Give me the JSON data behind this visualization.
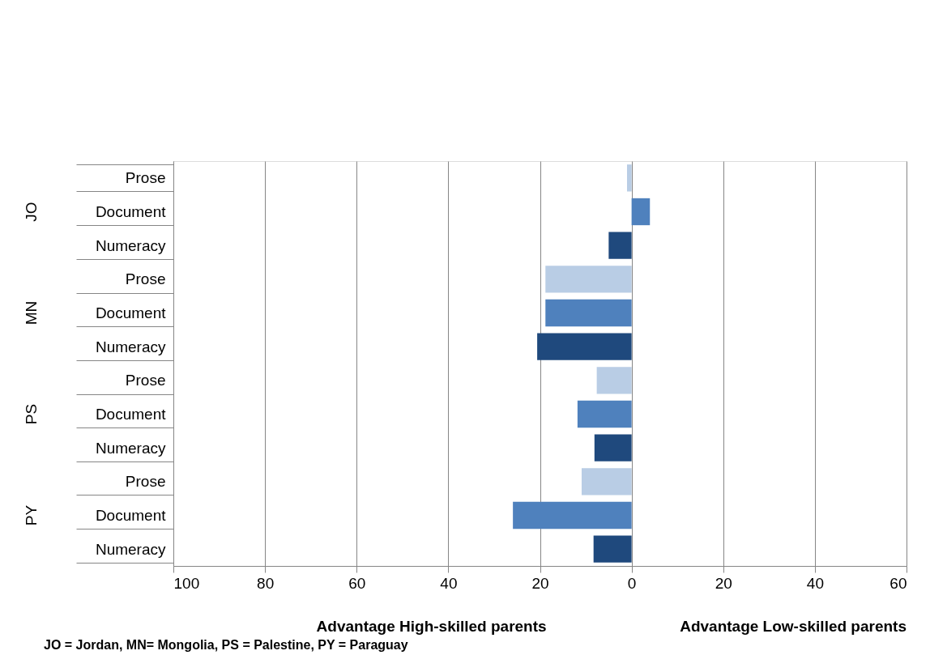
{
  "chart_data": {
    "type": "bar",
    "orientation": "horizontal",
    "categories": [
      "Prose",
      "Document",
      "Numeracy",
      "Prose",
      "Document",
      "Numeracy",
      "Prose",
      "Document",
      "Numeracy",
      "Prose",
      "Document",
      "Numeracy"
    ],
    "values": [
      -1,
      4,
      -5,
      -18.8,
      -18.8,
      -20.6,
      -7.6,
      -11.8,
      -8.1,
      -10.9,
      -25.9,
      -8.3
    ],
    "colors": [
      "#b9cde5",
      "#4f81bd",
      "#1f497d",
      "#b9cde5",
      "#4f81bd",
      "#1f497d",
      "#b9cde5",
      "#4f81bd",
      "#1f497d",
      "#b9cde5",
      "#4f81bd",
      "#1f497d"
    ],
    "xlim": [
      -100,
      60
    ],
    "xticks": [
      {
        "value": -100,
        "label": "100"
      },
      {
        "value": -80,
        "label": "80"
      },
      {
        "value": -60,
        "label": "60"
      },
      {
        "value": -40,
        "label": "40"
      },
      {
        "value": -20,
        "label": "20"
      },
      0,
      20,
      40,
      60
    ],
    "grid": "x",
    "annotations": [
      "JO",
      "MN",
      "PS",
      "PY",
      "Advantage High-skilled parents",
      "Advantage Low-skilled parents",
      "JO = Jordan, MN= Mongolia, PS = Palestine, PY = Paraguay"
    ]
  }
}
